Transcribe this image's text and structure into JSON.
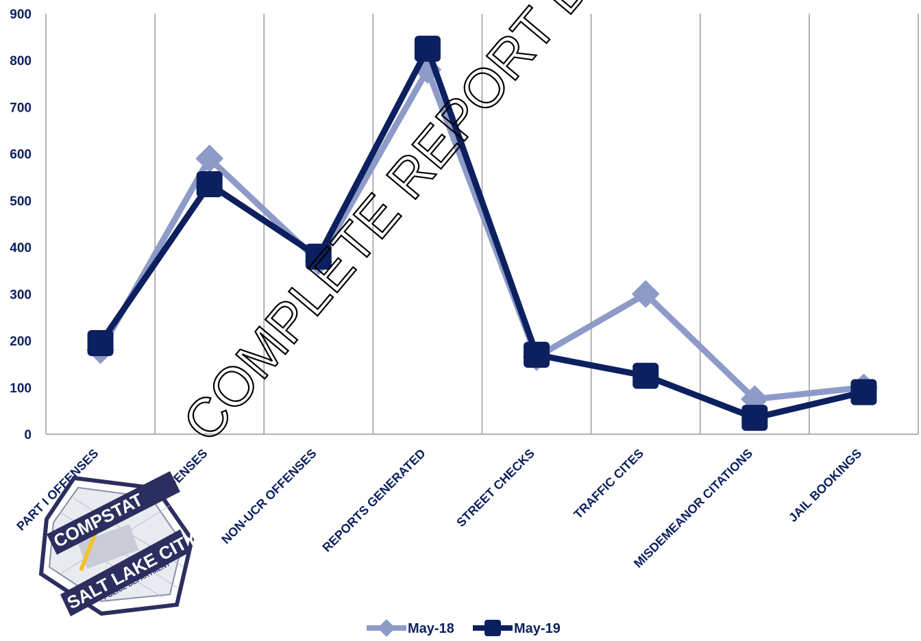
{
  "chart_data": {
    "type": "line",
    "categories": [
      "PART I OFFENSES",
      "PART II OFFENSES",
      "NON-UCR OFFENSES",
      "REPORTS GENERATED",
      "STREET CHECKS",
      "TRAFFIC CITES",
      "MISDEMEANOR CITATIONS",
      "JAIL BOOKINGS"
    ],
    "series": [
      {
        "name": "May-18",
        "values": [
          180,
          590,
          370,
          780,
          165,
          300,
          75,
          100
        ],
        "color": "#8e9bc8",
        "marker": "diamond"
      },
      {
        "name": "May-19",
        "values": [
          195,
          535,
          380,
          825,
          170,
          125,
          35,
          90
        ],
        "color": "#0c2060",
        "marker": "square"
      }
    ],
    "yticks": [
      0,
      100,
      200,
      300,
      400,
      500,
      600,
      700,
      800,
      900
    ],
    "ylim": [
      0,
      900
    ],
    "grid": "vertical",
    "legend": "bottom-center"
  },
  "watermark": "COMPLETE REPORT DISTRIBUTED",
  "logo": {
    "top": "COMPSTAT",
    "banner": "SALT LAKE CITY",
    "bottom": "POLICE DEPARTMENT"
  }
}
